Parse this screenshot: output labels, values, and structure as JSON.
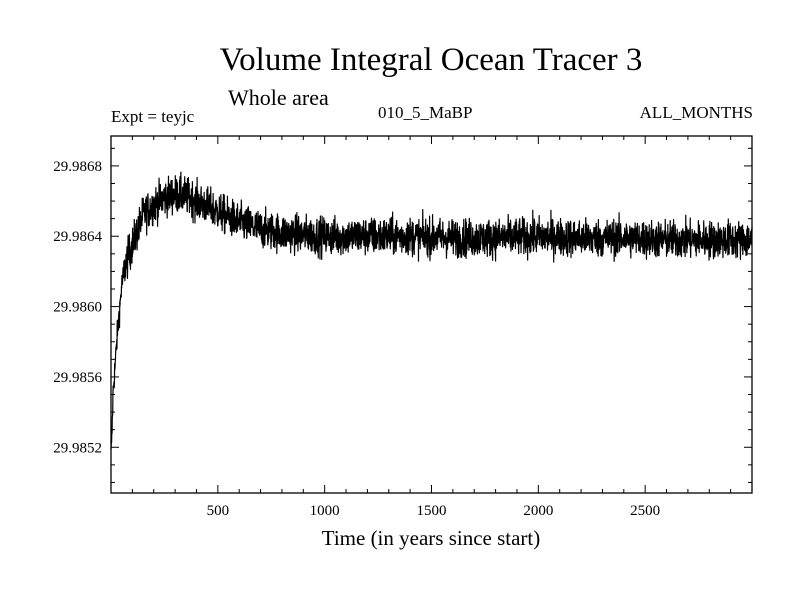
{
  "chart_data": {
    "type": "line",
    "title": "Volume Integral Ocean Tracer 3",
    "subtitle": "Whole area",
    "annotations": {
      "experiment": "Expt = teyjc",
      "run": "010_5_MaBP",
      "months": "ALL_MONTHS"
    },
    "xlabel": "Time (in years since start)",
    "ylabel": "",
    "xlim": [
      0,
      3000
    ],
    "ylim": [
      29.98494,
      29.98697
    ],
    "x_ticks": [
      500,
      1000,
      1500,
      2000,
      2500
    ],
    "x_tick_labels": [
      "500",
      "1000",
      "1500",
      "2000",
      "2500"
    ],
    "y_ticks": [
      29.9852,
      29.9856,
      29.986,
      29.9864,
      29.9868
    ],
    "y_tick_labels": [
      "29.9852",
      "29.9856",
      "29.9860",
      "29.9864",
      "29.9868"
    ],
    "grid": false,
    "series": [
      {
        "color": "#000000",
        "x": [
          0,
          5,
          10,
          20,
          30,
          40,
          50,
          70,
          100,
          150,
          200,
          250,
          300,
          350,
          400,
          450,
          500,
          600,
          700,
          800,
          900,
          1000,
          1200,
          1400,
          1600,
          1800,
          2000,
          2200,
          2400,
          2600,
          2800,
          3000
        ],
        "values": [
          29.98515,
          29.9853,
          29.98552,
          29.98568,
          29.98585,
          29.98598,
          29.98612,
          29.98625,
          29.98635,
          29.98652,
          29.98658,
          29.98662,
          29.98664,
          29.98663,
          29.9866,
          29.98657,
          29.98654,
          29.98648,
          29.98644,
          29.98642,
          29.98641,
          29.9864,
          29.9864,
          29.9864,
          29.98639,
          29.98639,
          29.9864,
          29.98639,
          29.98639,
          29.98638,
          29.98638,
          29.98638
        ],
        "noise_amplitude": 0.00025
      }
    ]
  }
}
